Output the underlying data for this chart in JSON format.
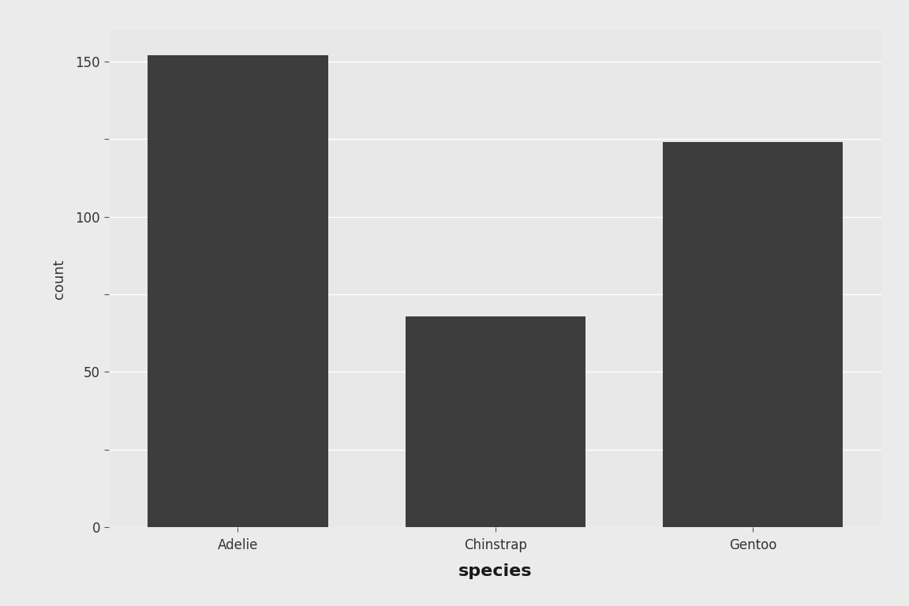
{
  "categories": [
    "Adelie",
    "Chinstrap",
    "Gentoo"
  ],
  "values": [
    152,
    68,
    124
  ],
  "bar_color": "#3d3d3d",
  "outer_background": "#ebebeb",
  "panel_background": "#e8e8e8",
  "grid_color": "#ffffff",
  "xlabel": "species",
  "ylabel": "count",
  "xlabel_fontsize": 16,
  "ylabel_fontsize": 13,
  "tick_label_fontsize": 12,
  "yticks": [
    0,
    50,
    100,
    150
  ],
  "minor_yticks": [
    25,
    75,
    125
  ],
  "ylim": [
    0,
    160
  ],
  "bar_width": 0.7
}
